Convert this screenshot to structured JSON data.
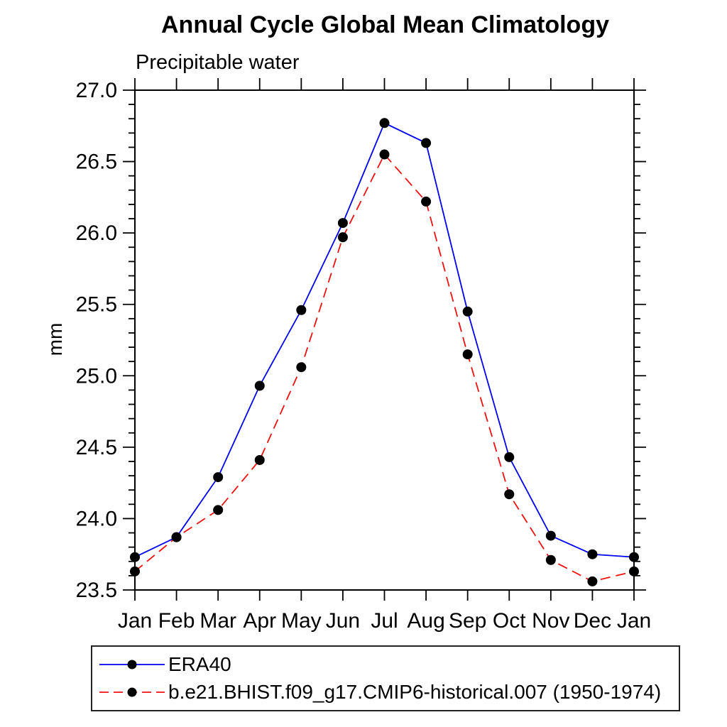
{
  "page": {
    "title": "Annual Cycle Global Mean Climatology",
    "subtitle": "Precipitable water",
    "y_axis_label": "mm"
  },
  "chart_data": {
    "type": "line",
    "title": "Annual Cycle Global Mean Climatology",
    "subtitle": "Precipitable water",
    "xlabel": "",
    "ylabel": "mm",
    "categories": [
      "Jan",
      "Feb",
      "Mar",
      "Apr",
      "May",
      "Jun",
      "Jul",
      "Aug",
      "Sep",
      "Oct",
      "Nov",
      "Dec",
      "Jan"
    ],
    "ylim": [
      23.5,
      27.0
    ],
    "ytick_major_step": 0.5,
    "ytick_minor_step": 0.1,
    "ytick_labels": [
      "23.5",
      "24.0",
      "24.5",
      "25.0",
      "25.5",
      "26.0",
      "26.5",
      "27.0"
    ],
    "grid": false,
    "legend_position": "bottom-left-boxed",
    "axis_color": "#000000",
    "marker_shape": "filled-circle",
    "series": [
      {
        "name": "ERA40",
        "color": "#0000ee",
        "line_style": "solid",
        "marker_color": "#000000",
        "values": [
          23.73,
          23.87,
          24.29,
          24.93,
          25.46,
          26.07,
          26.77,
          26.63,
          25.45,
          24.43,
          23.88,
          23.75,
          23.73
        ]
      },
      {
        "name": "b.e21.BHIST.f09_g17.CMIP6-historical.007 (1950-1974)",
        "color": "#f01010",
        "line_style": "dashed",
        "marker_color": "#000000",
        "values": [
          23.63,
          23.87,
          24.06,
          24.41,
          25.06,
          25.97,
          26.55,
          26.22,
          25.15,
          24.17,
          23.71,
          23.56,
          23.63
        ]
      }
    ]
  }
}
